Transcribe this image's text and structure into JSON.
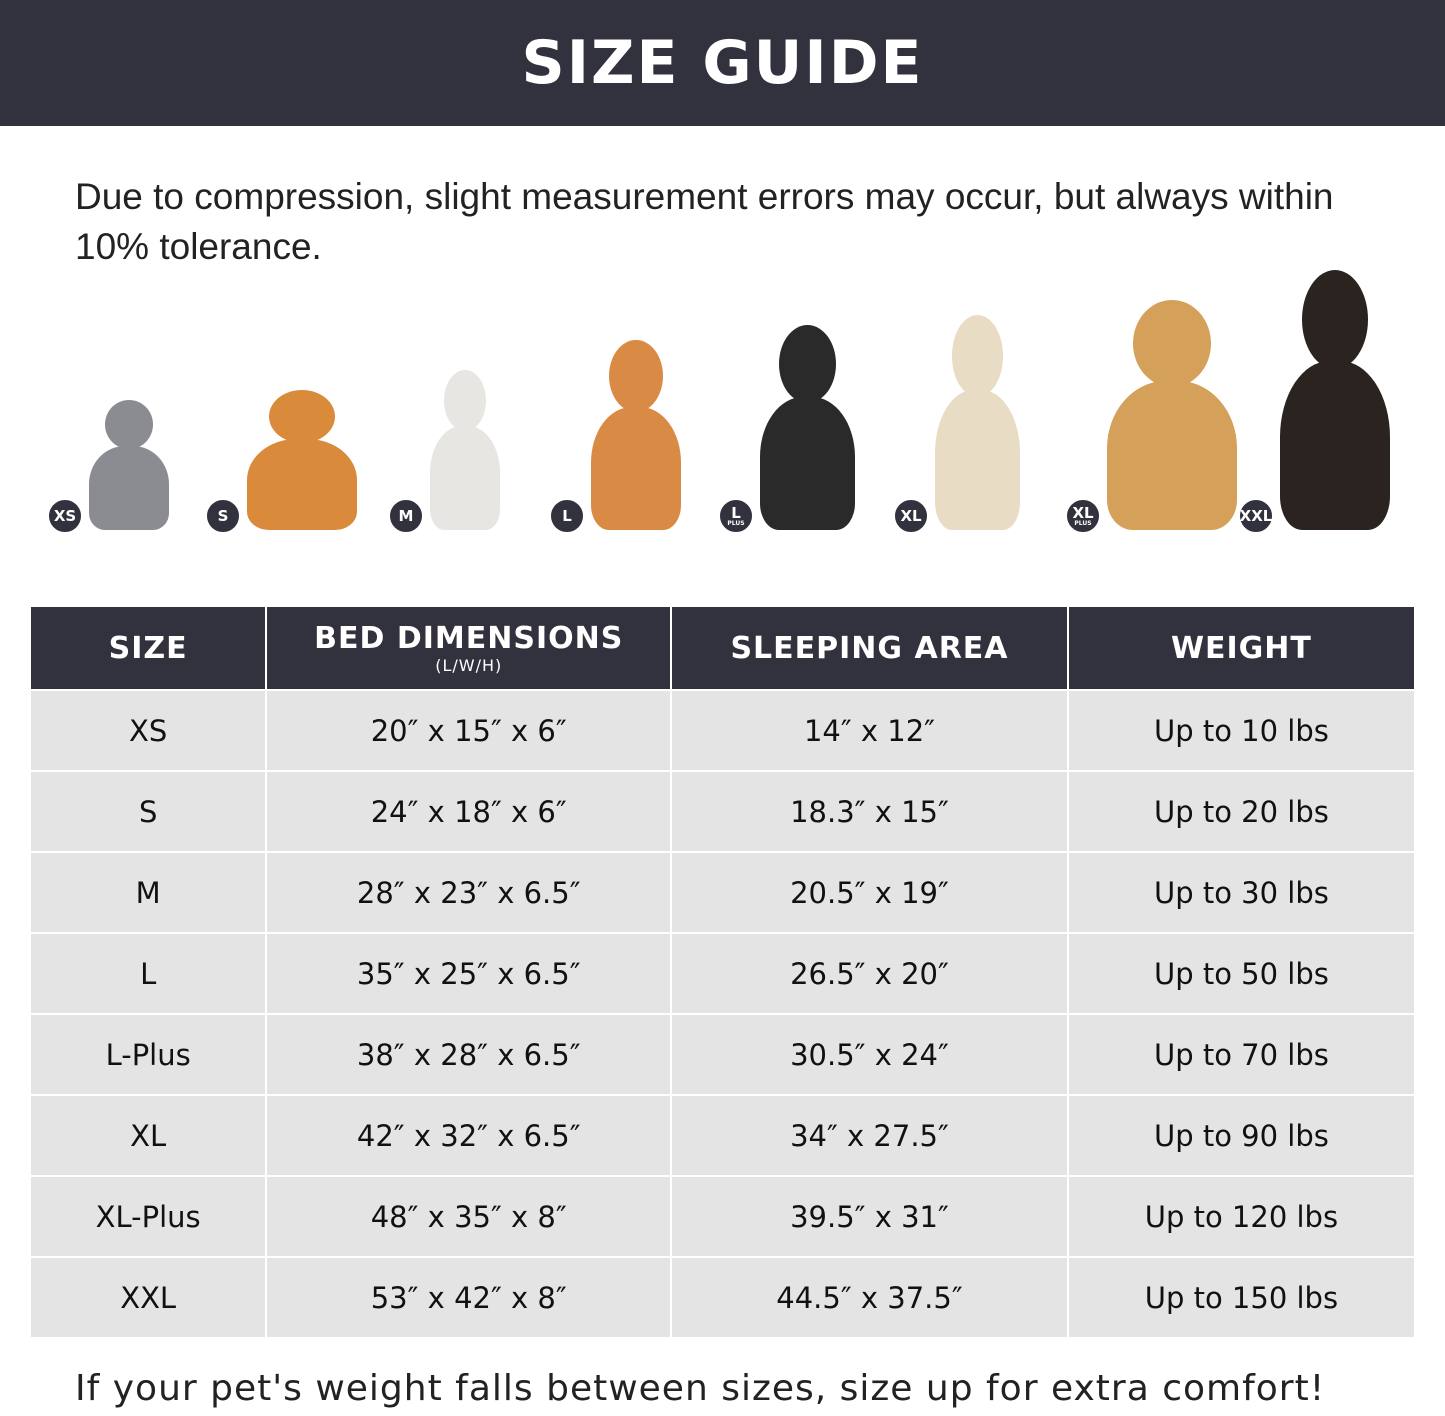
{
  "header": {
    "title": "SIZE GUIDE"
  },
  "note": "Due to compression, slight measurement errors may occur, but always within 10% tolerance.",
  "pets": [
    {
      "badge": "XS",
      "sub": "",
      "animal": "cat",
      "color": "#8a8c92"
    },
    {
      "badge": "S",
      "sub": "",
      "animal": "pomeranian",
      "color": "#d98a3a"
    },
    {
      "badge": "M",
      "sub": "",
      "animal": "french-bulldog",
      "color": "#e8e6e2"
    },
    {
      "badge": "L",
      "sub": "",
      "animal": "shiba-inu",
      "color": "#d98b45"
    },
    {
      "badge": "L",
      "sub": "PLUS",
      "animal": "border-collie",
      "color": "#2a2a2a"
    },
    {
      "badge": "XL",
      "sub": "",
      "animal": "labrador",
      "color": "#e8dcc4"
    },
    {
      "badge": "XL",
      "sub": "PLUS",
      "animal": "golden-retriever",
      "color": "#d4a05a"
    },
    {
      "badge": "XXL",
      "sub": "",
      "animal": "doberman",
      "color": "#2a2320"
    }
  ],
  "table": {
    "headers": [
      {
        "label": "SIZE",
        "sub": ""
      },
      {
        "label": "BED DIMENSIONS",
        "sub": "(L/W/H)"
      },
      {
        "label": "SLEEPING AREA",
        "sub": ""
      },
      {
        "label": "WEIGHT",
        "sub": ""
      }
    ],
    "rows": [
      [
        "XS",
        "20″ x 15″ x 6″",
        "14″ x 12″",
        "Up to 10 lbs"
      ],
      [
        "S",
        "24″ x 18″ x 6″",
        "18.3″ x 15″",
        "Up to 20 lbs"
      ],
      [
        "M",
        "28″ x 23″ x 6.5″",
        "20.5″ x 19″",
        "Up to 30 lbs"
      ],
      [
        "L",
        "35″ x 25″ x 6.5″",
        "26.5″ x 20″",
        "Up to 50 lbs"
      ],
      [
        "L-Plus",
        "38″ x 28″ x 6.5″",
        "30.5″ x 24″",
        "Up to 70 lbs"
      ],
      [
        "XL",
        "42″ x 32″ x 6.5″",
        "34″ x 27.5″",
        "Up to 90 lbs"
      ],
      [
        "XL-Plus",
        "48″ x 35″ x 8″",
        "39.5″ x 31″",
        "Up to 120 lbs"
      ],
      [
        "XXL",
        "53″ x 42″ x 8″",
        "44.5″ x 37.5″",
        "Up to 150 lbs"
      ]
    ]
  },
  "footer": "If your pet's weight falls between sizes, size up for extra comfort!"
}
